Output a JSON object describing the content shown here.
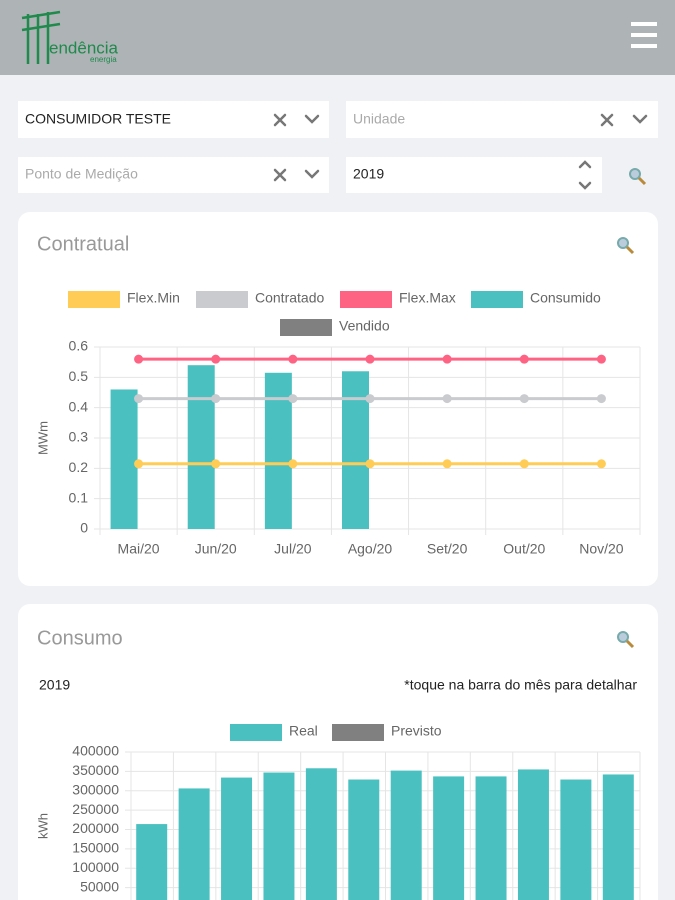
{
  "header": {
    "logo_text": "endência",
    "logo_subtext": "energia"
  },
  "filters": {
    "consumer": "CONSUMIDOR TESTE",
    "unit_placeholder": "Unidade",
    "point_placeholder": "Ponto de Medição",
    "year": "2019"
  },
  "chart_data": [
    {
      "type": "bar",
      "title": "Contratual",
      "ylabel": "MWm",
      "categories": [
        "Mai/20",
        "Jun/20",
        "Jul/20",
        "Ago/20",
        "Set/20",
        "Out/20",
        "Nov/20"
      ],
      "series": [
        {
          "name": "Flex.Min",
          "type": "line",
          "color": "#ffcd56",
          "values": [
            0.215,
            0.215,
            0.215,
            0.215,
            0.215,
            0.215,
            0.215
          ]
        },
        {
          "name": "Contratado",
          "type": "line",
          "color": "#c9cbcf",
          "values": [
            0.43,
            0.43,
            0.43,
            0.43,
            0.43,
            0.43,
            0.43
          ]
        },
        {
          "name": "Flex.Max",
          "type": "line",
          "color": "#ff6384",
          "values": [
            0.56,
            0.56,
            0.56,
            0.56,
            0.56,
            0.56,
            0.56
          ]
        },
        {
          "name": "Consumido",
          "type": "bar",
          "color": "#4bc0c0",
          "values": [
            0.46,
            0.54,
            0.515,
            0.52,
            null,
            null,
            null
          ]
        },
        {
          "name": "Vendido",
          "type": "bar",
          "color": "#808080",
          "values": [
            null,
            null,
            null,
            null,
            null,
            null,
            null
          ]
        }
      ],
      "ylim": [
        0,
        0.6
      ],
      "yticks": [
        0,
        0.1,
        0.2,
        0.3,
        0.4,
        0.5,
        0.6
      ],
      "grid": true
    },
    {
      "type": "bar",
      "title": "Consumo",
      "subtitle": "2019",
      "annotation": "*toque na barra do mês para detalhar",
      "ylabel": "kWh",
      "categories": [
        null,
        null,
        null,
        null,
        null,
        null,
        null,
        null,
        null,
        null,
        null,
        null
      ],
      "series": [
        {
          "name": "Real",
          "type": "bar",
          "color": "#4bc0c0",
          "values": [
            214000,
            306000,
            334000,
            347000,
            358000,
            329000,
            352000,
            337000,
            337000,
            355000,
            329000,
            342000
          ]
        },
        {
          "name": "Previsto",
          "type": "bar",
          "color": "#808080",
          "values": [
            null,
            null,
            null,
            null,
            null,
            null,
            null,
            null,
            null,
            null,
            null,
            null
          ]
        }
      ],
      "ylim": [
        0,
        400000
      ],
      "yticks": [
        50000,
        100000,
        150000,
        200000,
        250000,
        300000,
        350000,
        400000
      ],
      "grid": true
    }
  ]
}
